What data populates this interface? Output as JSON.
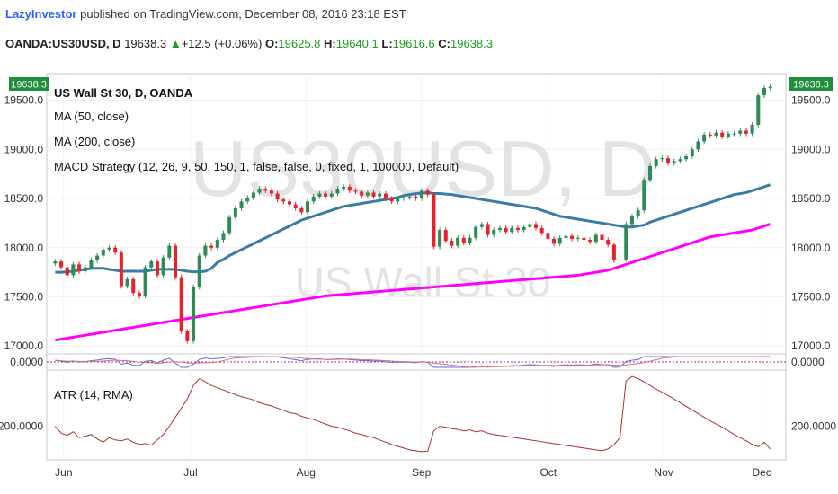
{
  "header": {
    "author": "LazyInvestor",
    "published": " published on TradingView.com, December 08, 2016 23:18 EST",
    "symbol": "OANDA:US30USD, D",
    "last": "19638.3",
    "change": "+12.5 (+0.06%)",
    "o_label": "O:",
    "o": "19625.8",
    "h_label": "H:",
    "h": "19640.1",
    "l_label": "L:",
    "l": "19616.6",
    "c_label": "C:",
    "c": "19638.3"
  },
  "watermark": {
    "symbol": "US30USD, D",
    "name": "US Wall St 30"
  },
  "legend": {
    "title": "US Wall St 30, D, OANDA",
    "ma50": "MA (50, close)",
    "ma200": "MA (200, close)",
    "macd": "MACD Strategy (12, 26, 9, 50, 150, 1, false, false, 0, fixed, 1, 100000, Default)",
    "atr": "ATR (14, RMA)"
  },
  "price_badge": "19638.3",
  "colors": {
    "up": "#2e8b57",
    "down": "#e8202a",
    "ma50": "#3a7ca5",
    "ma200": "#ff00ff",
    "atr": "#a83232",
    "macd": "#5b6ee1",
    "signal": "#e07070"
  },
  "chart_data": [
    {
      "type": "candlestick",
      "title": "US Wall St 30, D, OANDA",
      "yticks": [
        "19500.0",
        "19000.0",
        "18500.0",
        "18000.0",
        "17500.0",
        "17000.0"
      ],
      "ylim": [
        16920,
        19770
      ],
      "xticks": [
        "Jun",
        "Jul",
        "Aug",
        "Sep",
        "Oct",
        "Nov",
        "Dec"
      ],
      "close": [
        17860,
        17800,
        17720,
        17830,
        17760,
        17800,
        17870,
        17920,
        17980,
        18000,
        17950,
        17610,
        17680,
        17540,
        17510,
        17800,
        17860,
        17720,
        17900,
        18020,
        17700,
        17150,
        17050,
        17600,
        17920,
        18020,
        18000,
        18080,
        18150,
        18310,
        18400,
        18470,
        18510,
        18560,
        18600,
        18580,
        18550,
        18490,
        18470,
        18440,
        18400,
        18360,
        18470,
        18520,
        18550,
        18520,
        18550,
        18600,
        18620,
        18580,
        18570,
        18530,
        18560,
        18520,
        18550,
        18500,
        18470,
        18500,
        18510,
        18520,
        18500,
        18580,
        18540,
        18010,
        18180,
        18070,
        18020,
        18100,
        18050,
        18100,
        18210,
        18240,
        18130,
        18180,
        18200,
        18160,
        18200,
        18180,
        18210,
        18240,
        18200,
        18150,
        18090,
        18040,
        18100,
        18120,
        18090,
        18100,
        18080,
        18060,
        18130,
        18080,
        18030,
        17870,
        17880,
        18240,
        18320,
        18380,
        18690,
        18830,
        18900,
        18910,
        18860,
        18880,
        18900,
        18930,
        19000,
        19080,
        19150,
        19140,
        19170,
        19130,
        19160,
        19160,
        19190,
        19160,
        19250,
        19550,
        19625,
        19638
      ],
      "ma50": [
        17750,
        17750,
        17755,
        17760,
        17770,
        17780,
        17790,
        17790,
        17790,
        17780,
        17770,
        17760,
        17760,
        17760,
        17760,
        17760,
        17770,
        17780,
        17780,
        17780,
        17780,
        17770,
        17760,
        17755,
        17755,
        17760,
        17790,
        17850,
        17880,
        17920,
        17950,
        17980,
        18010,
        18040,
        18070,
        18100,
        18130,
        18160,
        18190,
        18220,
        18250,
        18280,
        18300,
        18320,
        18340,
        18360,
        18380,
        18400,
        18420,
        18430,
        18440,
        18450,
        18460,
        18470,
        18480,
        18490,
        18500,
        18510,
        18530,
        18540,
        18550,
        18555,
        18560,
        18550,
        18550,
        18545,
        18540,
        18530,
        18520,
        18510,
        18500,
        18490,
        18480,
        18470,
        18460,
        18450,
        18440,
        18430,
        18420,
        18410,
        18400,
        18380,
        18360,
        18340,
        18320,
        18310,
        18300,
        18290,
        18280,
        18270,
        18260,
        18250,
        18240,
        18230,
        18220,
        18210,
        18210,
        18220,
        18230,
        18260,
        18280,
        18300,
        18320,
        18340,
        18360,
        18380,
        18400,
        18420,
        18440,
        18460,
        18480,
        18500,
        18520,
        18540,
        18550,
        18560,
        18580,
        18600,
        18620,
        18640
      ],
      "ma200": [
        17060,
        17070,
        17080,
        17090,
        17100,
        17110,
        17120,
        17130,
        17140,
        17150,
        17160,
        17170,
        17180,
        17190,
        17200,
        17210,
        17220,
        17230,
        17240,
        17250,
        17260,
        17270,
        17280,
        17290,
        17300,
        17310,
        17320,
        17330,
        17340,
        17350,
        17360,
        17370,
        17380,
        17390,
        17400,
        17410,
        17420,
        17430,
        17440,
        17450,
        17460,
        17470,
        17480,
        17490,
        17500,
        17510,
        17515,
        17520,
        17525,
        17530,
        17535,
        17540,
        17545,
        17550,
        17555,
        17560,
        17565,
        17570,
        17575,
        17580,
        17585,
        17590,
        17595,
        17600,
        17605,
        17610,
        17615,
        17620,
        17625,
        17630,
        17635,
        17640,
        17645,
        17650,
        17655,
        17660,
        17665,
        17670,
        17675,
        17680,
        17685,
        17690,
        17695,
        17700,
        17705,
        17710,
        17715,
        17720,
        17730,
        17740,
        17750,
        17760,
        17770,
        17790,
        17810,
        17830,
        17850,
        17870,
        17890,
        17910,
        17930,
        17950,
        17970,
        17990,
        18010,
        18030,
        18050,
        18070,
        18090,
        18110,
        18120,
        18130,
        18140,
        18150,
        18160,
        18170,
        18180,
        18200,
        18220,
        18240
      ]
    },
    {
      "type": "line",
      "title": "ATR (14, RMA)",
      "ytick": "200.0000",
      "values": [
        200,
        185,
        180,
        188,
        175,
        178,
        182,
        172,
        165,
        175,
        170,
        168,
        172,
        165,
        160,
        162,
        158,
        170,
        182,
        200,
        220,
        240,
        260,
        290,
        305,
        298,
        290,
        285,
        280,
        275,
        270,
        265,
        262,
        258,
        252,
        248,
        245,
        240,
        235,
        230,
        228,
        222,
        218,
        215,
        210,
        205,
        200,
        198,
        194,
        190,
        185,
        182,
        178,
        175,
        170,
        165,
        160,
        156,
        152,
        148,
        146,
        144,
        145,
        190,
        200,
        198,
        195,
        193,
        190,
        192,
        188,
        190,
        185,
        182,
        180,
        178,
        176,
        174,
        172,
        170,
        168,
        166,
        164,
        162,
        160,
        158,
        156,
        154,
        152,
        150,
        148,
        146,
        150,
        160,
        175,
        300,
        310,
        305,
        298,
        290,
        282,
        275,
        268,
        260,
        252,
        244,
        236,
        228,
        220,
        212,
        205,
        198,
        190,
        182,
        175,
        168,
        160,
        155,
        165,
        150
      ]
    }
  ]
}
